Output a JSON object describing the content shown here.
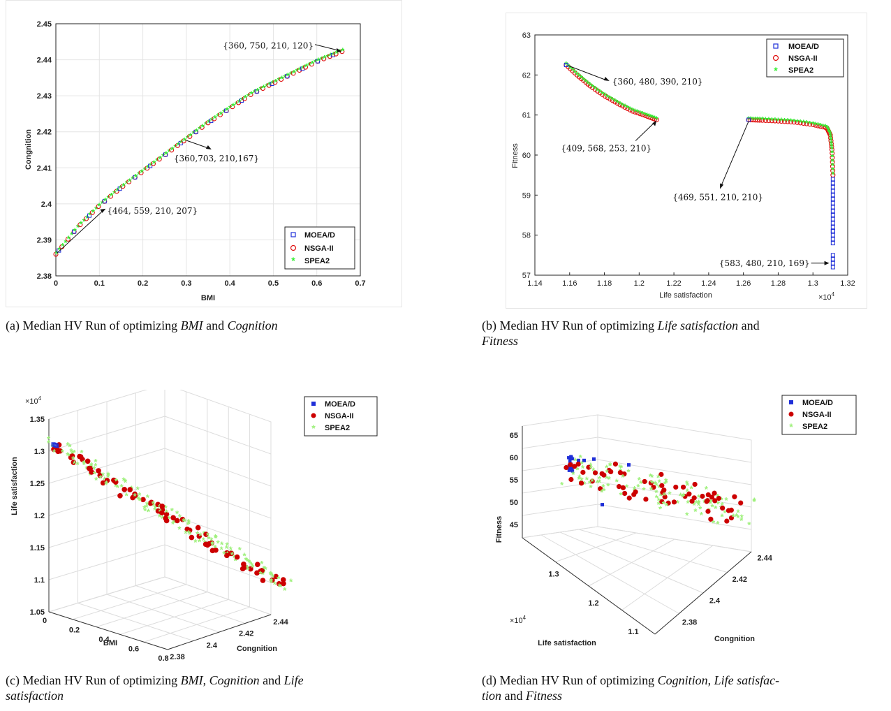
{
  "legend": [
    "MOEA/D",
    "NSGA-II",
    "SPEA2"
  ],
  "colors": {
    "moead": "#1f2fd8",
    "nsga": "#e01010",
    "spea": "#33ee33",
    "spea_light": "#9df07a",
    "nsga_fill": "#cc0000"
  },
  "captions": {
    "a": {
      "prefix": "(a) Median HV Run of optimizing ",
      "t1": "BMI",
      "mid": " and  ",
      "t2": "Cognition"
    },
    "b": {
      "prefix": "(b) Median HV Run of optimizing ",
      "t1": "Life satisfaction",
      "mid": " and",
      "t2": "Fitness"
    },
    "c": {
      "prefix": "(c) Median HV Run of optimizing ",
      "t1": "BMI",
      "m1": ", ",
      "t2": "Cognition",
      "m2": " and ",
      "t3": "Life",
      "t4": "satisfaction"
    },
    "d": {
      "prefix": "(d) Median HV Run of optimizing ",
      "t1": "Cognition",
      "m1": ", ",
      "t2": "Life satisfac-",
      "t3": "tion",
      "m2": " and ",
      "t4": "Fitness"
    }
  },
  "chart_data": [
    {
      "id": "a",
      "type": "scatter",
      "xlabel": "BMI",
      "ylabel": "Congnition",
      "xlim": [
        0,
        0.7
      ],
      "ylim": [
        2.38,
        2.45
      ],
      "xticks": [
        "0",
        "0.1",
        "0.2",
        "0.3",
        "0.4",
        "0.5",
        "0.6",
        "0.7"
      ],
      "yticks": [
        "2.38",
        "2.39",
        "2.4",
        "2.41",
        "2.42",
        "2.43",
        "2.44",
        "2.45"
      ],
      "grid": true,
      "legend_position": "bottom-right",
      "front": [
        [
          0,
          2.386
        ],
        [
          0.05,
          2.3935
        ],
        [
          0.1,
          2.3995
        ],
        [
          0.15,
          2.4045
        ],
        [
          0.2,
          2.409
        ],
        [
          0.25,
          2.4135
        ],
        [
          0.3,
          2.418
        ],
        [
          0.35,
          2.4225
        ],
        [
          0.4,
          2.4265
        ],
        [
          0.45,
          2.4305
        ],
        [
          0.5,
          2.4335
        ],
        [
          0.55,
          2.4365
        ],
        [
          0.6,
          2.4395
        ],
        [
          0.658,
          2.4423
        ]
      ],
      "annotations": [
        {
          "text": "{360, 750, 210, 120}",
          "x": 0.66,
          "y": 2.4423
        },
        {
          "text": "{360,703, 210,167}",
          "x": 0.3,
          "y": 2.418
        },
        {
          "text": "{464, 559, 210, 207}",
          "x": 0.105,
          "y": 2.4
        },
        {
          "text": "",
          "x": 0,
          "y": 2.386
        }
      ]
    },
    {
      "id": "b",
      "type": "scatter",
      "xlabel": "Life satisfaction",
      "ylabel": "Fitness",
      "x_exponent": "×10^4",
      "xlim": [
        1.14,
        1.32
      ],
      "ylim": [
        57,
        63
      ],
      "xticks": [
        "1.14",
        "1.16",
        "1.18",
        "1.2",
        "1.22",
        "1.24",
        "1.26",
        "1.28",
        "1.3",
        "1.32"
      ],
      "yticks": [
        "57",
        "58",
        "59",
        "60",
        "61",
        "62",
        "63"
      ],
      "grid": false,
      "legend_position": "top-right",
      "front_left": [
        [
          1.158,
          62.25
        ],
        [
          1.165,
          61.97
        ],
        [
          1.172,
          61.72
        ],
        [
          1.18,
          61.48
        ],
        [
          1.188,
          61.28
        ],
        [
          1.196,
          61.1
        ],
        [
          1.204,
          60.98
        ],
        [
          1.21,
          60.88
        ]
      ],
      "front_right": [
        [
          1.263,
          60.88
        ],
        [
          1.27,
          60.87
        ],
        [
          1.28,
          60.85
        ],
        [
          1.29,
          60.82
        ],
        [
          1.3,
          60.76
        ],
        [
          1.308,
          60.68
        ],
        [
          1.31,
          60.5
        ],
        [
          1.311,
          60.1
        ],
        [
          1.3115,
          59.5
        ]
      ],
      "moead_tail": [
        59.4,
        59.2,
        59.0,
        58.8,
        58.6,
        58.4,
        58.2,
        58.1,
        57.9,
        57.5,
        57.3
      ],
      "annotations": [
        {
          "text": "{360, 480, 390, 210}",
          "x": 1.158,
          "y": 62.25
        },
        {
          "text": "{409, 568, 253, 210}",
          "x": 1.21,
          "y": 60.88
        },
        {
          "text": "{469, 551, 210, 210}",
          "x": 1.263,
          "y": 60.88
        },
        {
          "text": "{583, 480, 210, 169}",
          "x": 1.311,
          "y": 57.3
        }
      ]
    },
    {
      "id": "c",
      "type": "scatter3d",
      "xlabel": "BMI",
      "ylabel": "Congnition",
      "zlabel": "Life satisfaction",
      "z_exponent": "×10^4",
      "xticks": [
        "0",
        "0.2",
        "0.4",
        "0.6",
        "0.8"
      ],
      "yticks": [
        "2.38",
        "2.4",
        "2.42",
        "2.44"
      ],
      "zticks": [
        "1.05",
        "1.1",
        "1.15",
        "1.2",
        "1.25",
        "1.3",
        "1.35"
      ],
      "zlim": [
        1.05,
        1.35
      ],
      "grid": true,
      "legend_position": "top-right",
      "z_values": [
        1.31,
        1.3,
        1.29,
        1.28,
        1.27,
        1.26,
        1.25,
        1.24,
        1.23,
        1.22,
        1.21,
        1.2,
        1.19,
        1.18,
        1.17,
        1.16,
        1.15,
        1.14,
        1.13,
        1.12,
        1.11,
        1.095
      ]
    },
    {
      "id": "d",
      "type": "scatter3d",
      "xlabel": "Life satisfaction",
      "ylabel": "Congnition",
      "zlabel": "Fitness",
      "x_exponent": "×10^4",
      "xticks": [
        "1.3",
        "1.2",
        "1.1"
      ],
      "yticks": [
        "2.38",
        "2.4",
        "2.42",
        "2.44"
      ],
      "zticks": [
        "45",
        "50",
        "55",
        "60",
        "65"
      ],
      "zlim": [
        42,
        67
      ],
      "grid": true,
      "legend_position": "top-right",
      "z_values": [
        60,
        59,
        58,
        57,
        56,
        55,
        54,
        53,
        52,
        51,
        50,
        49,
        48,
        47
      ]
    }
  ]
}
